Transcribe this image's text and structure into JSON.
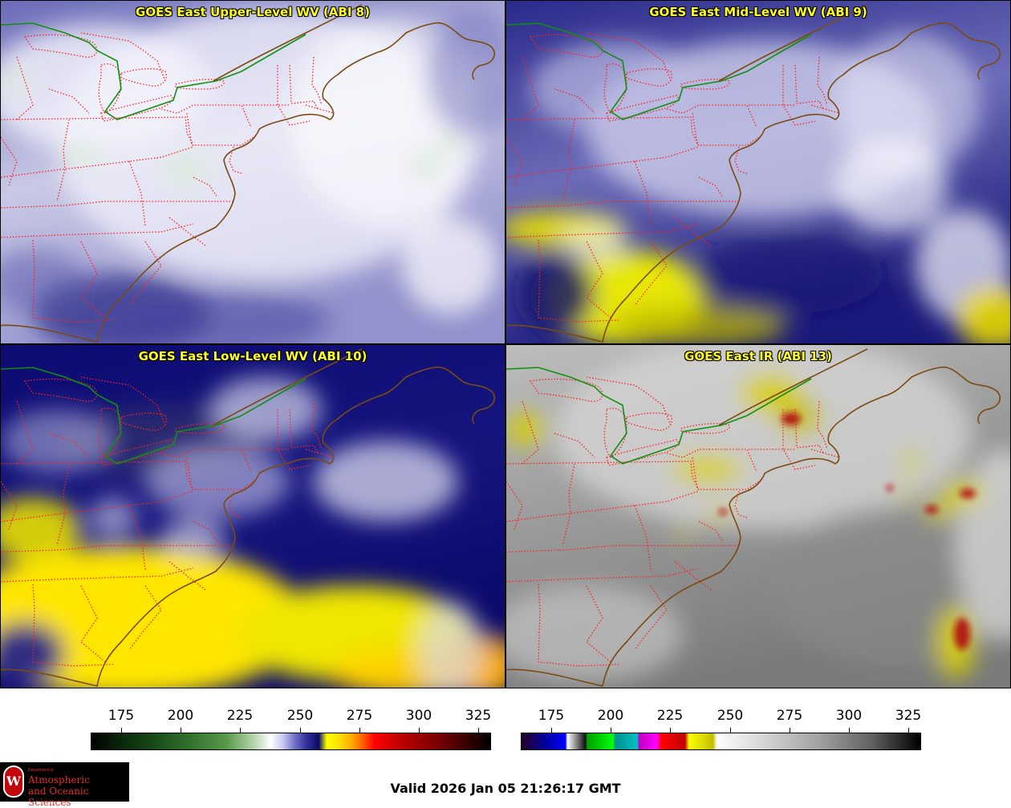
{
  "panels": [
    {
      "title": "GOES East Upper-Level WV (ABI 8)",
      "style": "upper"
    },
    {
      "title": "GOES East Mid-Level WV (ABI 9)",
      "style": "mid"
    },
    {
      "title": "GOES East Low-Level WV (ABI 10)",
      "style": "low"
    },
    {
      "title": "GOES East IR (ABI 13)",
      "style": "ir"
    }
  ],
  "colorbars": {
    "wv": {
      "ticks": [
        "175",
        "200",
        "225",
        "250",
        "275",
        "300",
        "325"
      ]
    },
    "ir": {
      "ticks": [
        "175",
        "200",
        "225",
        "250",
        "275",
        "300",
        "325"
      ]
    }
  },
  "valid_time": "Valid 2026 Jan 05 21:26:17 GMT",
  "logo": {
    "department": "Department of",
    "line1": "Atmospheric",
    "line2": "and Oceanic Sciences",
    "seal_letter": "W"
  },
  "colors": {
    "state_borders": "#ff2020",
    "coastline": "#7a4a10",
    "border_green": "#109010",
    "title": "#ffff22"
  }
}
